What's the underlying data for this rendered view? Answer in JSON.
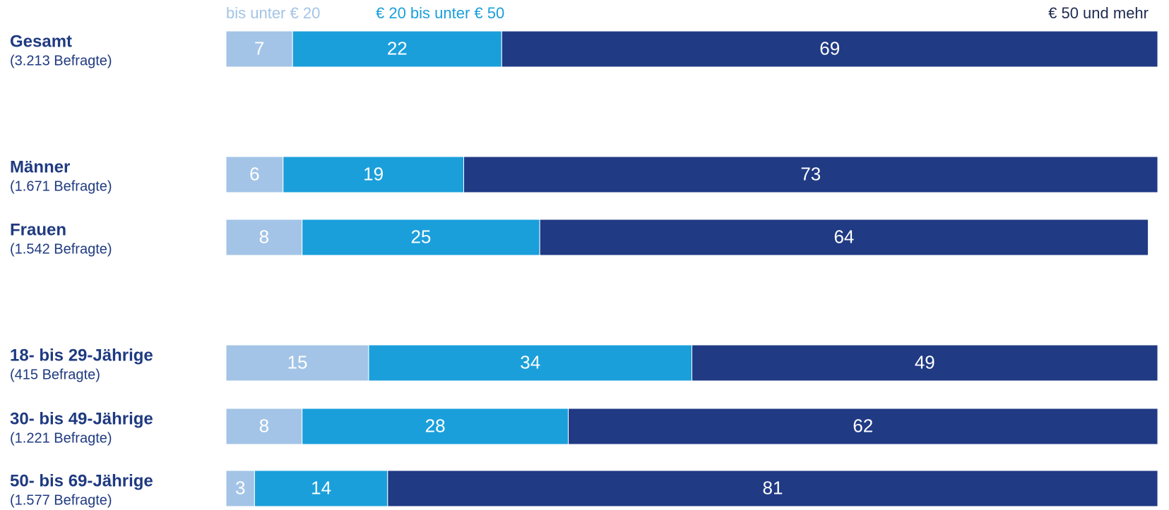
{
  "chart_data": {
    "type": "stacked-bar-horizontal",
    "categories": [
      "Gesamt",
      "Männer",
      "Frauen",
      "18- bis 29-Jährige",
      "30- bis 49-Jährige",
      "50- bis 69-Jährige"
    ],
    "category_sublabels": [
      "(3.213 Befragte)",
      "(1.671 Befragte)",
      "(1.542 Befragte)",
      "(415 Befragte)",
      "(1.221 Befragte)",
      "(1.577 Befragte)"
    ],
    "series": [
      {
        "name": "bis unter € 20",
        "color": "#a3c4e6",
        "values": [
          7,
          6,
          8,
          15,
          8,
          3
        ]
      },
      {
        "name": "€ 20 bis unter € 50",
        "color": "#1a9fdb",
        "values": [
          22,
          19,
          25,
          34,
          28,
          14
        ]
      },
      {
        "name": "€ 50 und mehr",
        "color": "#203a84",
        "values": [
          69,
          73,
          64,
          49,
          62,
          81
        ]
      }
    ],
    "xlim": [
      0,
      100
    ]
  }
}
